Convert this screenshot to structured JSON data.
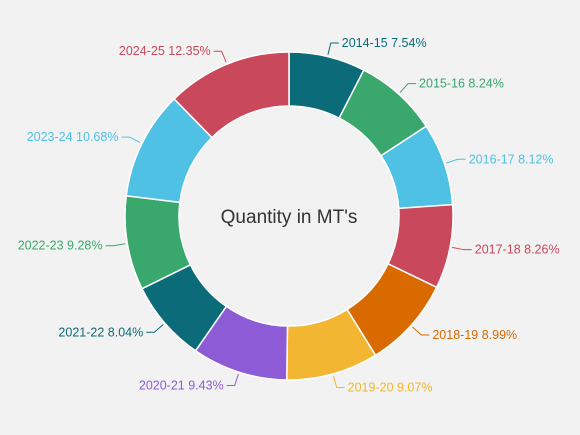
{
  "chart_data": {
    "type": "pie",
    "variant": "donut",
    "center_label": "Quantity in MT's",
    "slices": [
      {
        "label": "2014-15",
        "value": 7.54,
        "value_label": "7.54%",
        "color": "#0b6b78"
      },
      {
        "label": "2015-16",
        "value": 8.24,
        "value_label": "8.24%",
        "color": "#3aa76d"
      },
      {
        "label": "2016-17",
        "value": 8.12,
        "value_label": "8.12%",
        "color": "#4fc1e4"
      },
      {
        "label": "2017-18",
        "value": 8.26,
        "value_label": "8.26%",
        "color": "#c9485b"
      },
      {
        "label": "2018-19",
        "value": 8.99,
        "value_label": "8.99%",
        "color": "#d96a00"
      },
      {
        "label": "2019-20",
        "value": 9.07,
        "value_label": "9.07%",
        "color": "#f2b632"
      },
      {
        "label": "2020-21",
        "value": 9.43,
        "value_label": "9.43%",
        "color": "#8e5bd6"
      },
      {
        "label": "2021-22",
        "value": 8.04,
        "value_label": "8.04%",
        "color": "#0b6b78"
      },
      {
        "label": "2022-23",
        "value": 9.28,
        "value_label": "9.28%",
        "color": "#3aa76d"
      },
      {
        "label": "2023-24",
        "value": 10.68,
        "value_label": "10.68%",
        "color": "#4fc1e4"
      },
      {
        "label": "2024-25",
        "value": 12.35,
        "value_label": "12.35%",
        "color": "#c9485b"
      }
    ],
    "legend": "none",
    "data_labels": "outside with leader lines"
  }
}
